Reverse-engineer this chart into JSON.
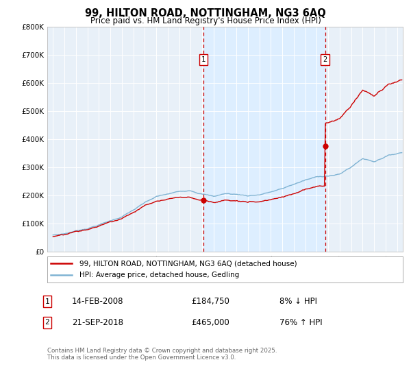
{
  "title": "99, HILTON ROAD, NOTTINGHAM, NG3 6AQ",
  "subtitle": "Price paid vs. HM Land Registry's House Price Index (HPI)",
  "legend_line1": "99, HILTON ROAD, NOTTINGHAM, NG3 6AQ (detached house)",
  "legend_line2": "HPI: Average price, detached house, Gedling",
  "transaction1_date": "14-FEB-2008",
  "transaction1_price": "£184,750",
  "transaction1_note": "8% ↓ HPI",
  "transaction2_date": "21-SEP-2018",
  "transaction2_price": "£465,000",
  "transaction2_note": "76% ↑ HPI",
  "marker1_year": 2008.12,
  "marker2_year": 2018.73,
  "marker1_price": 184750,
  "marker2_price": 465000,
  "ylim": [
    0,
    800000
  ],
  "xlim_start": 1994.5,
  "xlim_end": 2025.5,
  "red_color": "#cc0000",
  "blue_color": "#7fb3d3",
  "shade_color": "#ddeeff",
  "bg_color": "#e8f0f8",
  "grid_color": "#c8d8e8",
  "footnote": "Contains HM Land Registry data © Crown copyright and database right 2025.\nThis data is licensed under the Open Government Licence v3.0."
}
